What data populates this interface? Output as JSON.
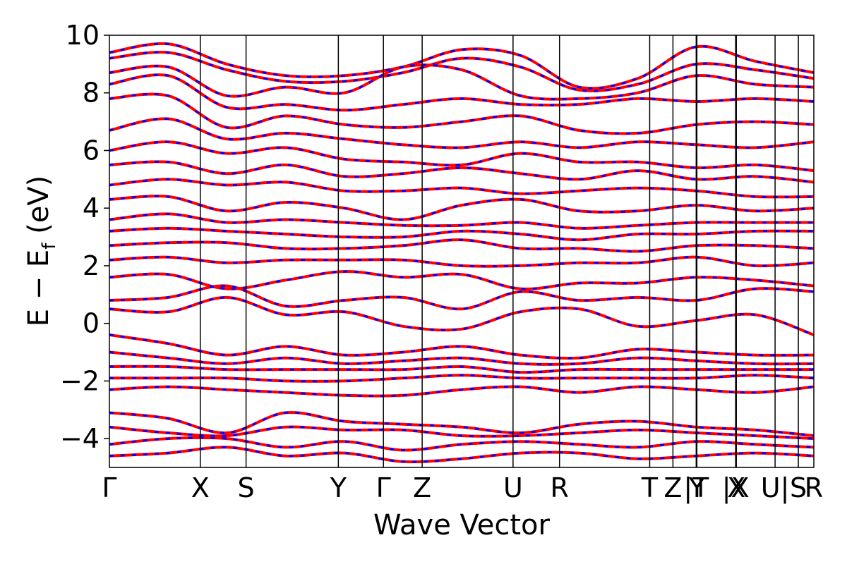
{
  "chart_data": {
    "type": "line",
    "title": "",
    "xlabel": "Wave Vector",
    "ylabel_parts": {
      "main": "E − E",
      "sub": "f",
      "unit": " (eV)"
    },
    "ylim": [
      -5,
      10
    ],
    "yticks": [
      10,
      8,
      6,
      4,
      2,
      0,
      -2,
      -4
    ],
    "ytick_labels": [
      "10",
      "8",
      "6",
      "4",
      "2",
      "0",
      "−2",
      "−4"
    ],
    "x_range": [
      0,
      1
    ],
    "kpoints": [
      {
        "label": "Γ",
        "x": 0.0
      },
      {
        "label": "X",
        "x": 0.129
      },
      {
        "label": "S",
        "x": 0.194
      },
      {
        "label": "Y",
        "x": 0.325
      },
      {
        "label": "Γ",
        "x": 0.389
      },
      {
        "label": "Z",
        "x": 0.444
      },
      {
        "label": "U",
        "x": 0.573
      },
      {
        "label": "R",
        "x": 0.639
      },
      {
        "label": "T",
        "x": 0.767
      },
      {
        "label": "Z",
        "x": 0.8
      },
      {
        "label": "|T",
        "x": 0.833
      },
      {
        "label": "Y",
        "x": 0.834
      },
      {
        "label": "|X",
        "x": 0.889
      },
      {
        "label": "X",
        "x": 0.89
      },
      {
        "label": "U|",
        "x": 0.945
      },
      {
        "label": "S",
        "x": 0.978
      },
      {
        "label": "R",
        "x": 1.0
      }
    ],
    "segment_breaks": [
      0.833,
      0.889,
      0.945
    ],
    "series": [
      {
        "color": "#ff0000",
        "style": "solid"
      },
      {
        "color": "#0000ff",
        "style": "dashed"
      }
    ],
    "bands": [
      {
        "y": [
          9.4,
          9.7,
          9.0,
          8.6,
          8.6,
          8.9,
          9.5,
          9.3,
          8.2,
          8.5,
          9.6,
          9.1,
          8.7
        ]
      },
      {
        "y": [
          9.2,
          9.4,
          8.8,
          8.4,
          8.4,
          8.7,
          9.2,
          8.9,
          8.1,
          8.3,
          9.0,
          8.8,
          8.5
        ]
      },
      {
        "y": [
          8.7,
          8.9,
          7.9,
          8.2,
          8.0,
          8.9,
          8.8,
          7.9,
          7.8,
          8.0,
          8.6,
          8.3,
          8.2
        ]
      },
      {
        "y": [
          8.3,
          8.6,
          7.5,
          7.6,
          7.4,
          7.6,
          7.8,
          7.6,
          7.6,
          7.8,
          7.7,
          7.8,
          7.7
        ]
      },
      {
        "y": [
          7.8,
          7.9,
          6.8,
          7.2,
          6.9,
          6.8,
          7.0,
          7.2,
          6.7,
          6.6,
          6.9,
          7.0,
          6.9
        ]
      },
      {
        "y": [
          6.7,
          7.1,
          6.4,
          6.6,
          6.4,
          6.2,
          6.1,
          6.3,
          6.1,
          6.3,
          6.2,
          6.1,
          6.3
        ]
      },
      {
        "y": [
          6.0,
          6.3,
          5.9,
          6.1,
          5.7,
          5.6,
          5.5,
          5.9,
          5.6,
          5.6,
          5.4,
          5.5,
          5.3
        ]
      },
      {
        "y": [
          5.5,
          5.6,
          5.2,
          5.5,
          5.1,
          5.2,
          5.4,
          5.2,
          5.0,
          5.3,
          5.0,
          5.1,
          4.9
        ]
      },
      {
        "y": [
          4.8,
          5.0,
          4.8,
          4.9,
          4.6,
          4.6,
          4.7,
          4.5,
          4.6,
          4.7,
          4.6,
          4.4,
          4.4
        ]
      },
      {
        "y": [
          4.3,
          4.4,
          3.9,
          4.2,
          4.0,
          3.6,
          4.1,
          4.3,
          3.9,
          3.9,
          4.1,
          3.9,
          4.0
        ]
      },
      {
        "y": [
          3.6,
          3.8,
          3.5,
          3.6,
          3.5,
          3.4,
          3.4,
          3.5,
          3.3,
          3.4,
          3.5,
          3.5,
          3.5
        ]
      },
      {
        "y": [
          3.2,
          3.3,
          3.2,
          3.1,
          3.0,
          3.0,
          3.2,
          3.1,
          2.9,
          3.1,
          3.1,
          3.2,
          3.2
        ]
      },
      {
        "y": [
          2.7,
          2.8,
          2.8,
          2.6,
          2.6,
          2.7,
          2.9,
          2.6,
          2.6,
          2.5,
          2.7,
          2.7,
          2.6
        ]
      },
      {
        "y": [
          2.2,
          2.3,
          2.1,
          2.2,
          2.2,
          2.2,
          2.0,
          2.0,
          2.1,
          2.1,
          2.3,
          2.0,
          2.1
        ]
      },
      {
        "y": [
          1.6,
          1.7,
          1.2,
          1.5,
          1.8,
          1.6,
          1.7,
          1.2,
          1.4,
          1.4,
          1.6,
          1.5,
          1.3
        ]
      },
      {
        "y": [
          0.8,
          0.9,
          1.3,
          0.6,
          0.8,
          0.9,
          0.5,
          1.1,
          0.8,
          0.9,
          0.8,
          1.2,
          1.1
        ]
      },
      {
        "y": [
          0.5,
          0.4,
          0.9,
          0.3,
          0.4,
          -0.1,
          -0.2,
          0.4,
          0.5,
          -0.1,
          0.1,
          0.3,
          -0.4
        ]
      },
      {
        "y": [
          -0.4,
          -0.7,
          -1.1,
          -0.8,
          -1.1,
          -1.0,
          -0.8,
          -1.1,
          -1.2,
          -0.9,
          -1.0,
          -1.1,
          -1.1
        ]
      },
      {
        "y": [
          -1.0,
          -1.2,
          -1.4,
          -1.2,
          -1.4,
          -1.3,
          -1.2,
          -1.4,
          -1.4,
          -1.2,
          -1.3,
          -1.4,
          -1.4
        ]
      },
      {
        "y": [
          -1.5,
          -1.5,
          -1.6,
          -1.6,
          -1.6,
          -1.6,
          -1.5,
          -1.7,
          -1.6,
          -1.6,
          -1.6,
          -1.6,
          -1.6
        ]
      },
      {
        "y": [
          -1.9,
          -1.9,
          -1.9,
          -2.0,
          -2.0,
          -1.9,
          -1.8,
          -1.9,
          -1.9,
          -1.9,
          -1.9,
          -1.8,
          -1.9
        ]
      },
      {
        "y": [
          -2.3,
          -2.2,
          -2.3,
          -2.4,
          -2.5,
          -2.5,
          -2.3,
          -2.2,
          -2.4,
          -2.2,
          -2.3,
          -2.4,
          -2.2
        ]
      },
      {
        "y": [
          -3.1,
          -3.3,
          -3.8,
          -3.1,
          -3.4,
          -3.5,
          -3.6,
          -3.8,
          -3.5,
          -3.4,
          -3.6,
          -3.7,
          -3.9
        ]
      },
      {
        "y": [
          -3.6,
          -3.8,
          -3.9,
          -3.6,
          -3.7,
          -3.7,
          -3.9,
          -3.9,
          -3.8,
          -3.7,
          -3.8,
          -3.9,
          -4.0
        ]
      },
      {
        "y": [
          -4.2,
          -4.0,
          -4.0,
          -4.3,
          -4.1,
          -4.4,
          -4.2,
          -4.1,
          -4.2,
          -4.3,
          -4.1,
          -4.2,
          -4.3
        ]
      },
      {
        "y": [
          -4.6,
          -4.5,
          -4.3,
          -4.6,
          -4.5,
          -4.8,
          -4.7,
          -4.5,
          -4.5,
          -4.7,
          -4.6,
          -4.5,
          -4.6
        ]
      }
    ]
  }
}
